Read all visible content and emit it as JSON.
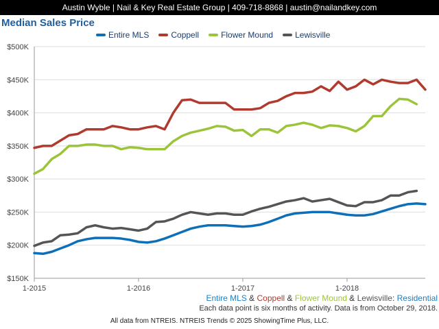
{
  "header": {
    "text": "Austin Wyble | Nail & Key Real Estate Group | 409-718-8868 | austin@nailandkey.com"
  },
  "chart_title": "Median Sales Price",
  "caption": {
    "parts": [
      {
        "text": "Entire MLS",
        "color": "#1a7fc4"
      },
      {
        "text": " & ",
        "color": "#333333"
      },
      {
        "text": "Coppell",
        "color": "#b03a2e"
      },
      {
        "text": " & ",
        "color": "#333333"
      },
      {
        "text": "Flower Mound",
        "color": "#9cc43a"
      },
      {
        "text": " & ",
        "color": "#333333"
      },
      {
        "text": "Lewisville",
        "color": "#555555"
      },
      {
        "text": ": ",
        "color": "#333333"
      },
      {
        "text": "Residential",
        "color": "#1a7fc4"
      }
    ]
  },
  "note": "Each data point is six months of activity. Data is from October 29, 2018.",
  "footer": "All data from NTREIS. NTREIS Trends © 2025 ShowingTime Plus, LLC.",
  "chart_data": {
    "type": "line",
    "title": "Median Sales Price",
    "xlabel": "",
    "ylabel": "",
    "ylim": [
      150000,
      500000
    ],
    "yticks": [
      150000,
      200000,
      250000,
      300000,
      350000,
      400000,
      450000,
      500000
    ],
    "ytick_labels": [
      "$150K",
      "$200K",
      "$250K",
      "$300K",
      "$350K",
      "$400K",
      "$450K",
      "$500K"
    ],
    "x_tick_labels": [
      "1-2015",
      "1-2016",
      "1-2017",
      "1-2018"
    ],
    "x_tick_positions": [
      0,
      12,
      24,
      36
    ],
    "x_range": [
      0,
      45
    ],
    "grid": true,
    "legend_position": "top",
    "series": [
      {
        "name": "Entire MLS",
        "color": "#0d6fb8",
        "values": [
          188000,
          187000,
          190000,
          195000,
          200000,
          206000,
          209000,
          211000,
          211000,
          211000,
          210000,
          208000,
          205000,
          204000,
          206000,
          210000,
          215000,
          220000,
          225000,
          228000,
          230000,
          230000,
          230000,
          229000,
          228000,
          229000,
          231000,
          235000,
          240000,
          245000,
          248000,
          249000,
          250000,
          250000,
          250000,
          248000,
          246000,
          245000,
          245000,
          247000,
          251000,
          255000,
          259000,
          262000,
          263000,
          262000
        ]
      },
      {
        "name": "Coppell",
        "color": "#b03a2e",
        "values": [
          347000,
          350000,
          350000,
          358000,
          366000,
          368000,
          375000,
          375000,
          375000,
          380000,
          378000,
          375000,
          375000,
          378000,
          380000,
          375000,
          400000,
          419000,
          420000,
          415000,
          415000,
          415000,
          415000,
          405000,
          405000,
          405000,
          407000,
          415000,
          418000,
          425000,
          430000,
          430000,
          432000,
          440000,
          433000,
          447000,
          435000,
          440000,
          450000,
          443000,
          450000,
          447000,
          445000,
          445000,
          450000,
          435000
        ]
      },
      {
        "name": "Flower Mound",
        "color": "#9cc43a",
        "values": [
          308000,
          315000,
          330000,
          338000,
          350000,
          350000,
          352000,
          352000,
          350000,
          350000,
          345000,
          348000,
          347000,
          345000,
          345000,
          345000,
          357000,
          365000,
          370000,
          373000,
          376000,
          380000,
          379000,
          373000,
          374000,
          365000,
          375000,
          375000,
          370000,
          380000,
          382000,
          385000,
          382000,
          377000,
          381000,
          380000,
          377000,
          372000,
          380000,
          395000,
          395000,
          410000,
          421000,
          420000,
          413000
        ]
      },
      {
        "name": "Lewisville",
        "color": "#555555",
        "values": [
          199000,
          204000,
          206000,
          215000,
          216000,
          218000,
          227000,
          230000,
          227000,
          225000,
          226000,
          224000,
          222000,
          225000,
          235000,
          236000,
          240000,
          246000,
          250000,
          248000,
          246000,
          248000,
          248000,
          246000,
          246000,
          251000,
          255000,
          258000,
          262000,
          266000,
          268000,
          271000,
          266000,
          268000,
          270000,
          265000,
          260000,
          259000,
          265000,
          265000,
          268000,
          275000,
          275000,
          280000,
          282000
        ]
      }
    ]
  }
}
